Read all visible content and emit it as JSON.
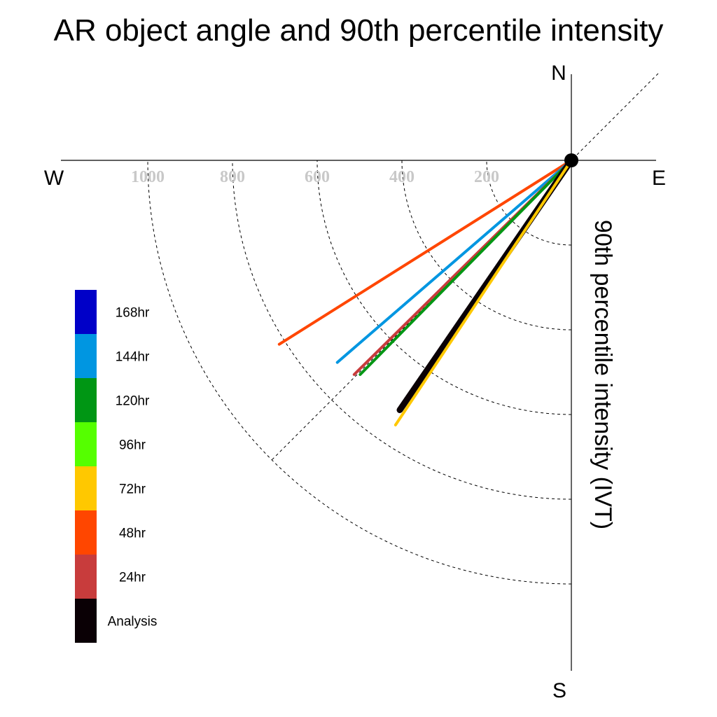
{
  "chart_data": {
    "type": "polar-vector",
    "title": "AR object angle and 90th percentile intensity",
    "radial_label": "90th percentile intensity (IVT)",
    "compass": {
      "north": "N",
      "south": "S",
      "east": "E",
      "west": "W"
    },
    "radial_ticks": [
      200,
      400,
      600,
      800,
      1000
    ],
    "radial_tick_labels": [
      "200",
      "400",
      "600",
      "800",
      "1000"
    ],
    "grid": true,
    "legend_placement": "left",
    "legend": [
      {
        "label": "168hr",
        "color": "#0000c8"
      },
      {
        "label": "144hr",
        "color": "#0096e1"
      },
      {
        "label": "120hr",
        "color": "#009614"
      },
      {
        "label": "96hr",
        "color": "#55ff00"
      },
      {
        "label": "72hr",
        "color": "#ffc800"
      },
      {
        "label": "48hr",
        "color": "#ff4600"
      },
      {
        "label": "24hr",
        "color": "#c83c3c"
      },
      {
        "label": "Analysis",
        "color": "#0a0005"
      }
    ],
    "series": [
      {
        "name": "48hr",
        "color": "#ff4600",
        "intensity": 815,
        "bearing_deg": 237.8
      },
      {
        "name": "144hr",
        "color": "#0096e1",
        "intensity": 730,
        "bearing_deg": 229.2
      },
      {
        "name": "24hr",
        "color": "#c83c3c",
        "intensity": 720,
        "bearing_deg": 225.4
      },
      {
        "name": "120hr",
        "color": "#009614",
        "intensity": 710,
        "bearing_deg": 224.6
      },
      {
        "name": "Analysis",
        "color": "#0a0005",
        "intensity": 715,
        "bearing_deg": 214.5
      },
      {
        "name": "72hr",
        "color": "#ffc800",
        "intensity": 750,
        "bearing_deg": 213.6
      }
    ]
  }
}
